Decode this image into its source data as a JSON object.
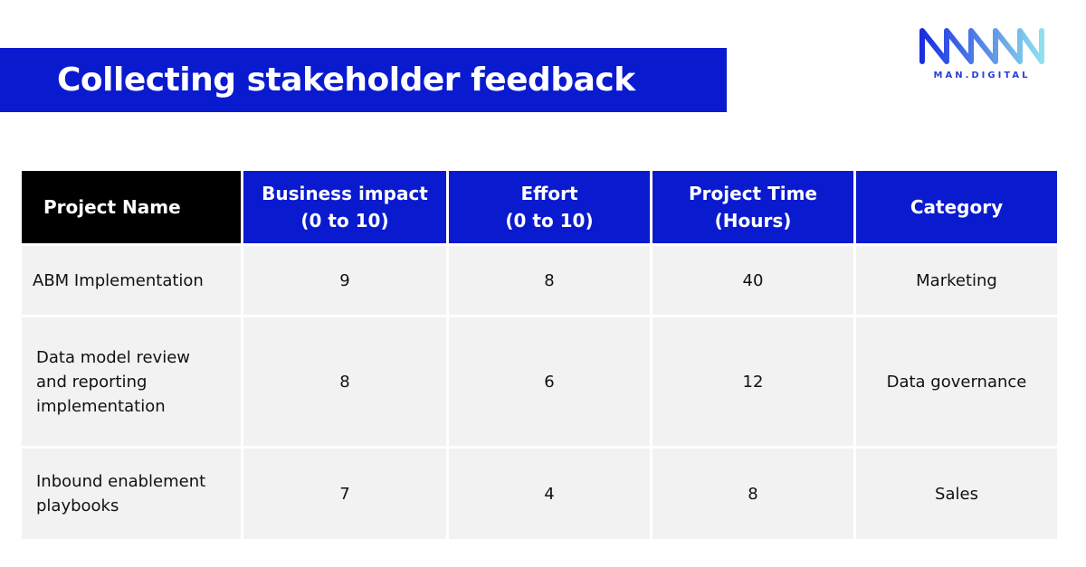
{
  "title": "Collecting stakeholder feedback",
  "logo": {
    "text": "MAN.DIGITAL",
    "colors": [
      "#1a2ee0",
      "#7fd8e8"
    ]
  },
  "colors": {
    "accent": "#0a1acf",
    "header_dark": "#000000",
    "cell_bg": "#f2f2f2"
  },
  "table": {
    "headers": [
      [
        "Project Name"
      ],
      [
        "Business impact",
        "(0 to 10)"
      ],
      [
        "Effort",
        "(0 to 10)"
      ],
      [
        "Project Time",
        "(Hours)"
      ],
      [
        "Category"
      ]
    ],
    "rows": [
      {
        "project": [
          "ABM Implementation"
        ],
        "impact": "9",
        "effort": "8",
        "hours": "40",
        "category": "Marketing"
      },
      {
        "project": [
          "Data model review",
          "and reporting",
          "implementation"
        ],
        "impact": "8",
        "effort": "6",
        "hours": "12",
        "category": "Data governance"
      },
      {
        "project": [
          "Inbound enablement",
          "playbooks"
        ],
        "impact": "7",
        "effort": "4",
        "hours": "8",
        "category": "Sales"
      }
    ]
  }
}
